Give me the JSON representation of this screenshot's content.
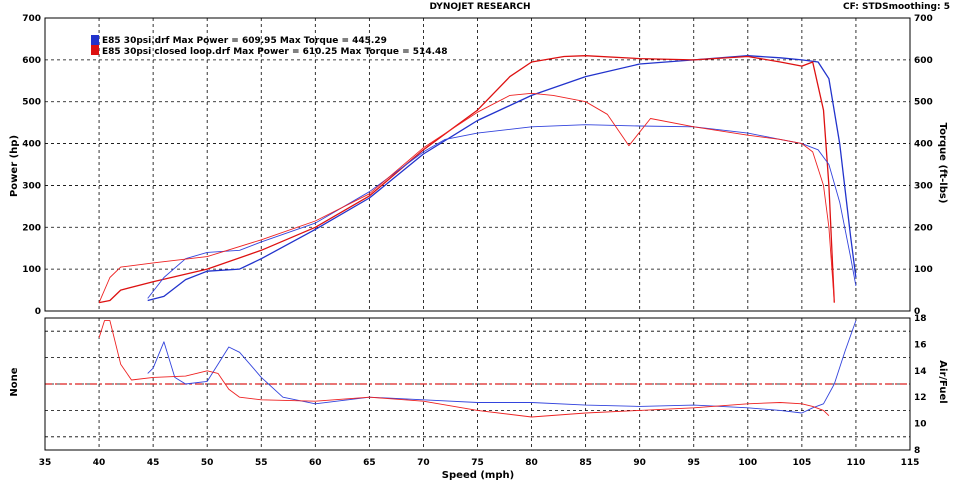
{
  "header": {
    "title": "DYNOJET RESEARCH",
    "cf": "CF: STD",
    "smoothing": "Smoothing: 5"
  },
  "chart_data": [
    {
      "type": "line",
      "ylabel_left": "Power (hp)",
      "ylabel_right": "Torque (ft-lbs)",
      "xlim": [
        35,
        115
      ],
      "ylim": [
        0,
        700
      ],
      "x_ticks": [
        35,
        40,
        45,
        50,
        55,
        60,
        65,
        70,
        75,
        80,
        85,
        90,
        95,
        100,
        105,
        110,
        115
      ],
      "y_ticks": [
        0,
        100,
        200,
        300,
        400,
        500,
        600,
        700
      ],
      "grid": true,
      "legend_position": "top-left",
      "series": [
        {
          "name": "E85 30psi.drf Max Power = 609.95 Max Torque = 445.29",
          "color": "#2233cc",
          "kind": "power",
          "x": [
            44.5,
            46,
            48,
            50,
            53,
            55,
            60,
            65,
            70,
            75,
            80,
            85,
            90,
            95,
            100,
            103,
            105,
            106.5,
            107.5,
            108.5,
            109.5,
            110
          ],
          "y": [
            25,
            35,
            75,
            95,
            100,
            125,
            195,
            270,
            375,
            455,
            515,
            560,
            590,
            600,
            610,
            605,
            600,
            595,
            555,
            400,
            180,
            80
          ]
        },
        {
          "name": "E85 30psi closed loop.drf Max Power = 610.25 Max Torque = 514.48",
          "color": "#dd1111",
          "kind": "power",
          "x": [
            40,
            41,
            42,
            45,
            50,
            55,
            60,
            65,
            70,
            75,
            78,
            80,
            83,
            85,
            90,
            95,
            100,
            103,
            105,
            106,
            107,
            107.5,
            108
          ],
          "y": [
            20,
            25,
            50,
            70,
            100,
            145,
            200,
            275,
            385,
            480,
            560,
            595,
            608,
            610,
            603,
            600,
            608,
            595,
            585,
            595,
            480,
            300,
            20
          ]
        },
        {
          "name": "",
          "color": "#3344dd",
          "kind": "torque",
          "x": [
            44.5,
            46,
            48,
            50,
            53,
            55,
            60,
            65,
            70,
            72,
            75,
            80,
            85,
            90,
            95,
            100,
            103,
            105,
            106.5,
            107.5,
            108.5,
            109.5,
            110
          ],
          "y": [
            30,
            80,
            125,
            140,
            145,
            165,
            210,
            285,
            380,
            410,
            425,
            440,
            445,
            442,
            440,
            425,
            410,
            400,
            385,
            350,
            260,
            130,
            60
          ]
        },
        {
          "name": "",
          "color": "#ee2222",
          "kind": "torque",
          "x": [
            40,
            41,
            42,
            45,
            50,
            55,
            60,
            65,
            70,
            75,
            78,
            80,
            82,
            85,
            87,
            89,
            91,
            95,
            100,
            103,
            105,
            106,
            107,
            107.5,
            108
          ],
          "y": [
            20,
            80,
            105,
            115,
            130,
            170,
            215,
            280,
            390,
            475,
            515,
            520,
            515,
            500,
            470,
            395,
            460,
            440,
            420,
            410,
            400,
            380,
            300,
            200,
            20
          ]
        }
      ]
    },
    {
      "type": "line",
      "ylabel_left": "None",
      "ylabel_right": "Air/Fuel",
      "xlabel": "Speed (mph)",
      "xlim": [
        35,
        115
      ],
      "ylim": [
        8,
        18
      ],
      "x_ticks": [
        35,
        40,
        45,
        50,
        55,
        60,
        65,
        70,
        75,
        80,
        85,
        90,
        95,
        100,
        105,
        110,
        115
      ],
      "y_ticks": [
        8,
        10,
        12,
        14,
        16,
        18
      ],
      "grid": true,
      "reference_line": {
        "y": 13,
        "color": "#dd2222"
      },
      "series": [
        {
          "name": "",
          "color": "#3344dd",
          "x": [
            44.5,
            45,
            46,
            47,
            48,
            50,
            51,
            52,
            53,
            55,
            57,
            60,
            65,
            70,
            75,
            80,
            85,
            90,
            95,
            100,
            103,
            105,
            106,
            107,
            108,
            109,
            110
          ],
          "y": [
            13.8,
            14.2,
            16.2,
            13.5,
            13.0,
            13.2,
            14.5,
            15.8,
            15.4,
            13.5,
            12.0,
            11.5,
            12.0,
            11.8,
            11.6,
            11.6,
            11.4,
            11.3,
            11.4,
            11.2,
            11.0,
            10.8,
            11.2,
            11.5,
            13.0,
            15.5,
            17.8
          ]
        },
        {
          "name": "",
          "color": "#ee2222",
          "x": [
            40,
            40.5,
            41,
            42,
            43,
            45,
            48,
            50,
            51,
            52,
            53,
            55,
            60,
            65,
            70,
            75,
            80,
            85,
            90,
            95,
            100,
            103,
            105,
            106,
            107,
            107.5
          ],
          "y": [
            16.5,
            17.8,
            17.8,
            14.5,
            13.3,
            13.5,
            13.6,
            14.0,
            13.8,
            12.6,
            12.0,
            11.8,
            11.7,
            12.0,
            11.7,
            11.0,
            10.5,
            10.8,
            11.0,
            11.2,
            11.5,
            11.6,
            11.5,
            11.3,
            11.0,
            10.6
          ]
        }
      ]
    }
  ]
}
